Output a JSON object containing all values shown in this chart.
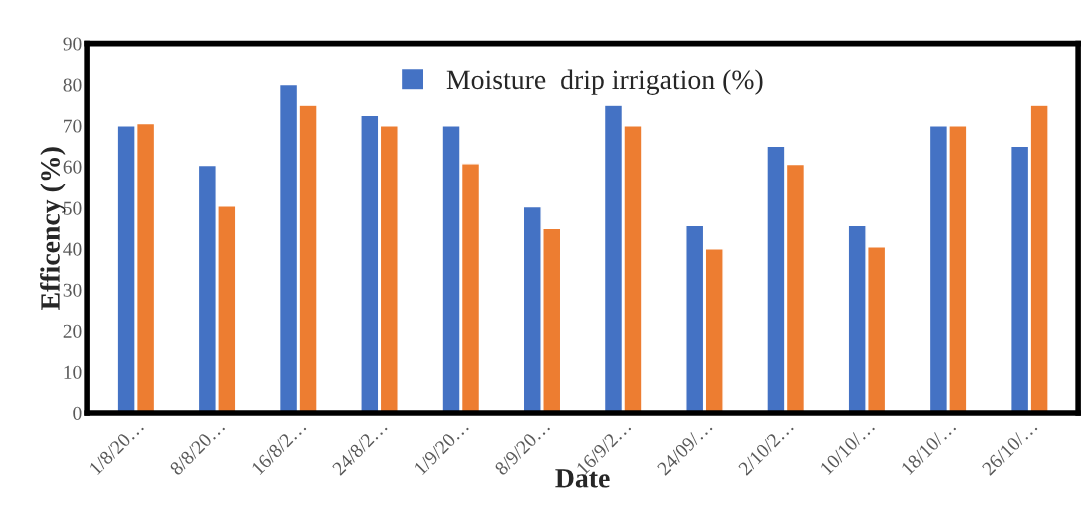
{
  "chart_data": {
    "type": "bar",
    "xlabel": "Date",
    "ylabel": "Efficency (%)",
    "categories": [
      "1/8/20…",
      "8/8/20…",
      "16/8/2…",
      "24/8/2…",
      "1/9/20…",
      "8/9/20…",
      "16/9/2…",
      "24/09/…",
      "2/10/2…",
      "10/10/…",
      "18/10/…",
      "26/10/…"
    ],
    "series": [
      {
        "name": "Moisture  drip irrigation (%)",
        "color": "#4472c4",
        "values": [
          70,
          60.3,
          80,
          72.5,
          70,
          50.3,
          75,
          45.7,
          65,
          45.7,
          70,
          65
        ]
      },
      {
        "color": "#ed7d31",
        "values": [
          70.5,
          50.5,
          75,
          70,
          60.7,
          45,
          70,
          40,
          60.5,
          40.5,
          70,
          75
        ]
      }
    ],
    "ylim": [
      0,
      90
    ],
    "yticks": [
      0,
      10,
      20,
      30,
      40,
      50,
      60,
      70,
      80,
      90
    ],
    "grid": false,
    "legend": "top"
  }
}
